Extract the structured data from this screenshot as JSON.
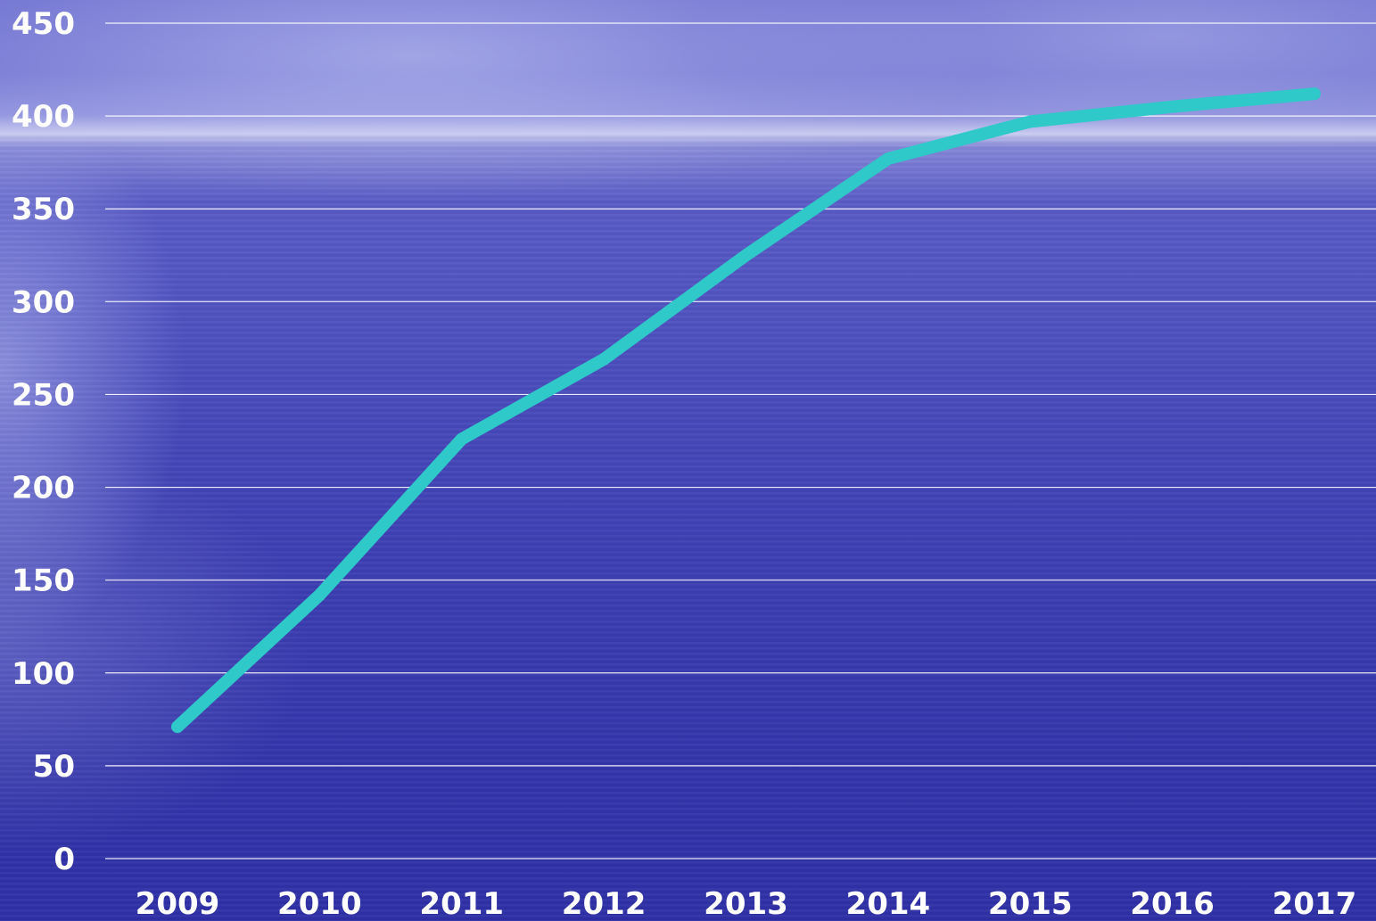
{
  "chart_data": {
    "type": "line",
    "title": "",
    "xlabel": "",
    "ylabel": "",
    "x": [
      "2009",
      "2010",
      "2011",
      "2012",
      "2013",
      "2014",
      "2015",
      "2016",
      "2017"
    ],
    "series": [
      {
        "values": [
          71,
          142,
          226,
          269,
          325,
          377,
          397,
          405,
          412
        ],
        "color": "#2ec9c8"
      }
    ],
    "ylim": [
      0,
      450
    ],
    "yticks": [
      "0",
      "50",
      "100",
      "150",
      "200",
      "250",
      "300",
      "350",
      "400",
      "450"
    ],
    "grid": true,
    "legend": "none",
    "gridline_color": "#ffffff",
    "label_color": "#ffffff"
  }
}
